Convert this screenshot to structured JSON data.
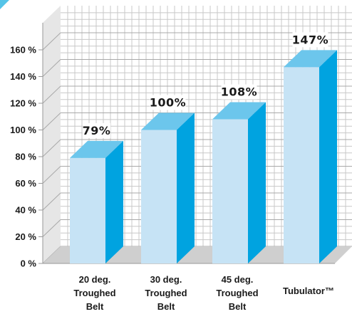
{
  "chart_data": {
    "type": "bar",
    "categories": [
      [
        "20 deg.",
        "Troughed",
        "Belt"
      ],
      [
        "30 deg.",
        "Troughed",
        "Belt"
      ],
      [
        "45 deg.",
        "Troughed",
        "Belt"
      ],
      [
        "Tubulator™"
      ]
    ],
    "values": [
      79,
      100,
      108,
      147
    ],
    "value_labels": [
      "79%",
      "100%",
      "108%",
      "147%"
    ],
    "y_tick_labels": [
      "0 %",
      "20 %",
      "40 %",
      "60 %",
      "80 %",
      "100 %",
      "120 %",
      "140 %",
      "160 %"
    ],
    "y_tick_values": [
      0,
      20,
      40,
      60,
      80,
      100,
      120,
      140,
      160
    ],
    "ylim": [
      0,
      160
    ],
    "grid": true,
    "style": "3d",
    "colors": {
      "bar_front": "#c6e3f5",
      "bar_top": "#6cc6ec",
      "bar_side": "#00a3e0",
      "grid_line": "#c8c8c8",
      "wall_shade": "#e6e6e6",
      "floor": "#cfcfcf",
      "accent": "#55c4e8"
    }
  }
}
